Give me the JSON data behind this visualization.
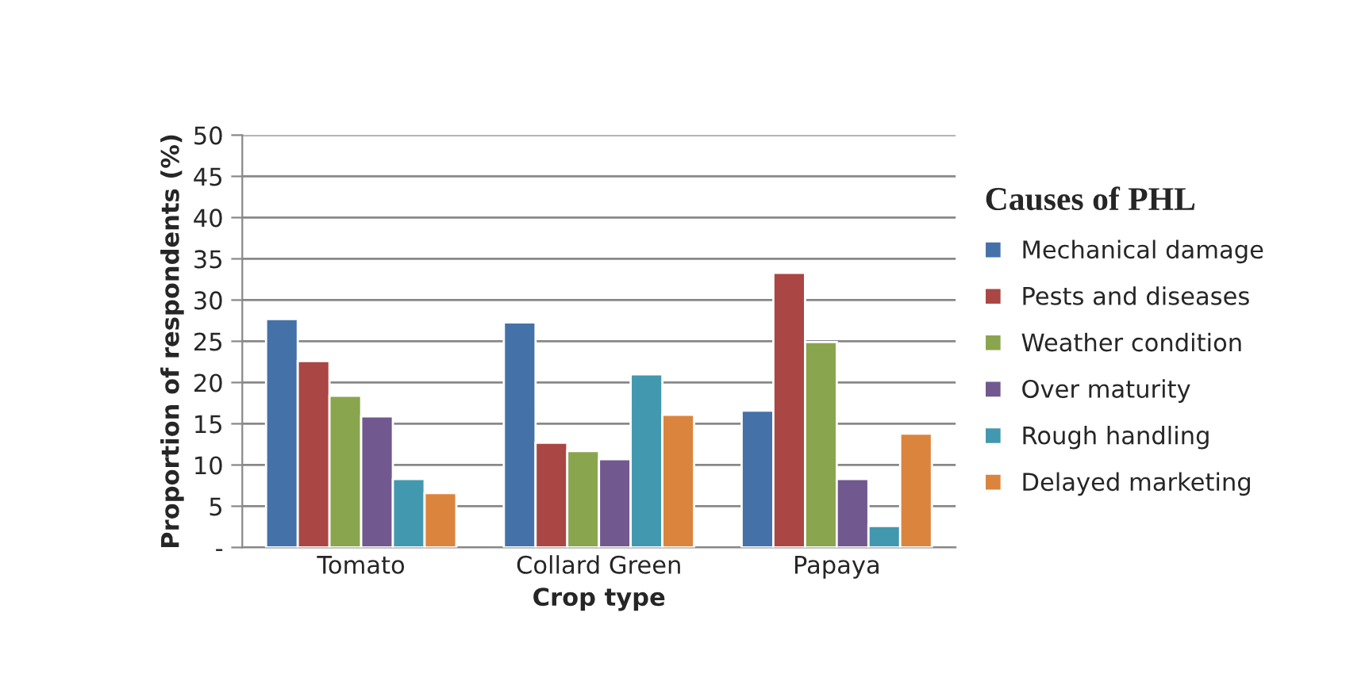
{
  "chart_data": {
    "type": "bar",
    "xlabel": "Crop type",
    "ylabel": "Proportion of respondents (%)",
    "legend_title": "Causes of PHL",
    "categories": [
      "Tomato",
      "Collard Green",
      "Papaya"
    ],
    "series": [
      {
        "name": "Mechanical damage",
        "color": "#4472a8",
        "values": [
          27.7,
          27.3,
          16.6
        ]
      },
      {
        "name": "Pests and diseases",
        "color": "#aa4643",
        "values": [
          22.6,
          12.7,
          33.3
        ]
      },
      {
        "name": "Weather condition",
        "color": "#89a54e",
        "values": [
          18.4,
          11.7,
          24.9
        ]
      },
      {
        "name": "Over maturity",
        "color": "#71588f",
        "values": [
          15.9,
          10.7,
          8.3
        ]
      },
      {
        "name": "Rough handling",
        "color": "#4198af",
        "values": [
          8.3,
          21.0,
          2.6
        ]
      },
      {
        "name": "Delayed marketing",
        "color": "#db843d",
        "values": [
          6.6,
          16.1,
          13.8
        ]
      }
    ],
    "ylim": [
      0,
      50
    ],
    "yticks": [
      {
        "value": 0,
        "label": "-"
      },
      5,
      10,
      15,
      20,
      25,
      30,
      35,
      40,
      45,
      50
    ],
    "grid": "y",
    "legend": "right"
  }
}
